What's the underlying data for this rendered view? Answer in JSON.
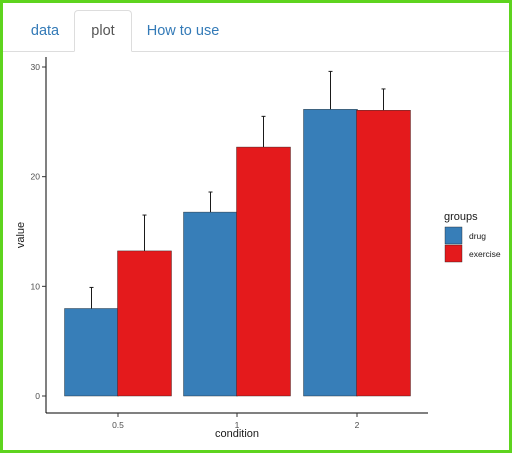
{
  "tabs": [
    {
      "label": "data",
      "active": false
    },
    {
      "label": "plot",
      "active": true
    },
    {
      "label": "How to use",
      "active": false
    }
  ],
  "colors": {
    "frame": "#5ed41e",
    "tab_link": "#337ab7",
    "drug": "#377eb8",
    "exercise": "#e41a1c"
  },
  "chart_data": {
    "type": "bar",
    "categories": [
      "0.5",
      "1",
      "2"
    ],
    "xlabel": "condition",
    "ylabel": "value",
    "ylim": [
      0,
      30
    ],
    "yticks": [
      "0",
      "10",
      "20",
      "30"
    ],
    "grid": false,
    "legend": {
      "title": "groups",
      "position": "right"
    },
    "series": [
      {
        "name": "drug",
        "color": "#377eb8",
        "values": [
          7.98,
          16.77,
          26.14
        ],
        "error_upper": [
          9.9,
          18.6,
          29.6
        ]
      },
      {
        "name": "exercise",
        "color": "#e41a1c",
        "values": [
          13.23,
          22.7,
          26.06
        ],
        "error_upper": [
          16.5,
          25.5,
          28.0
        ]
      }
    ]
  }
}
